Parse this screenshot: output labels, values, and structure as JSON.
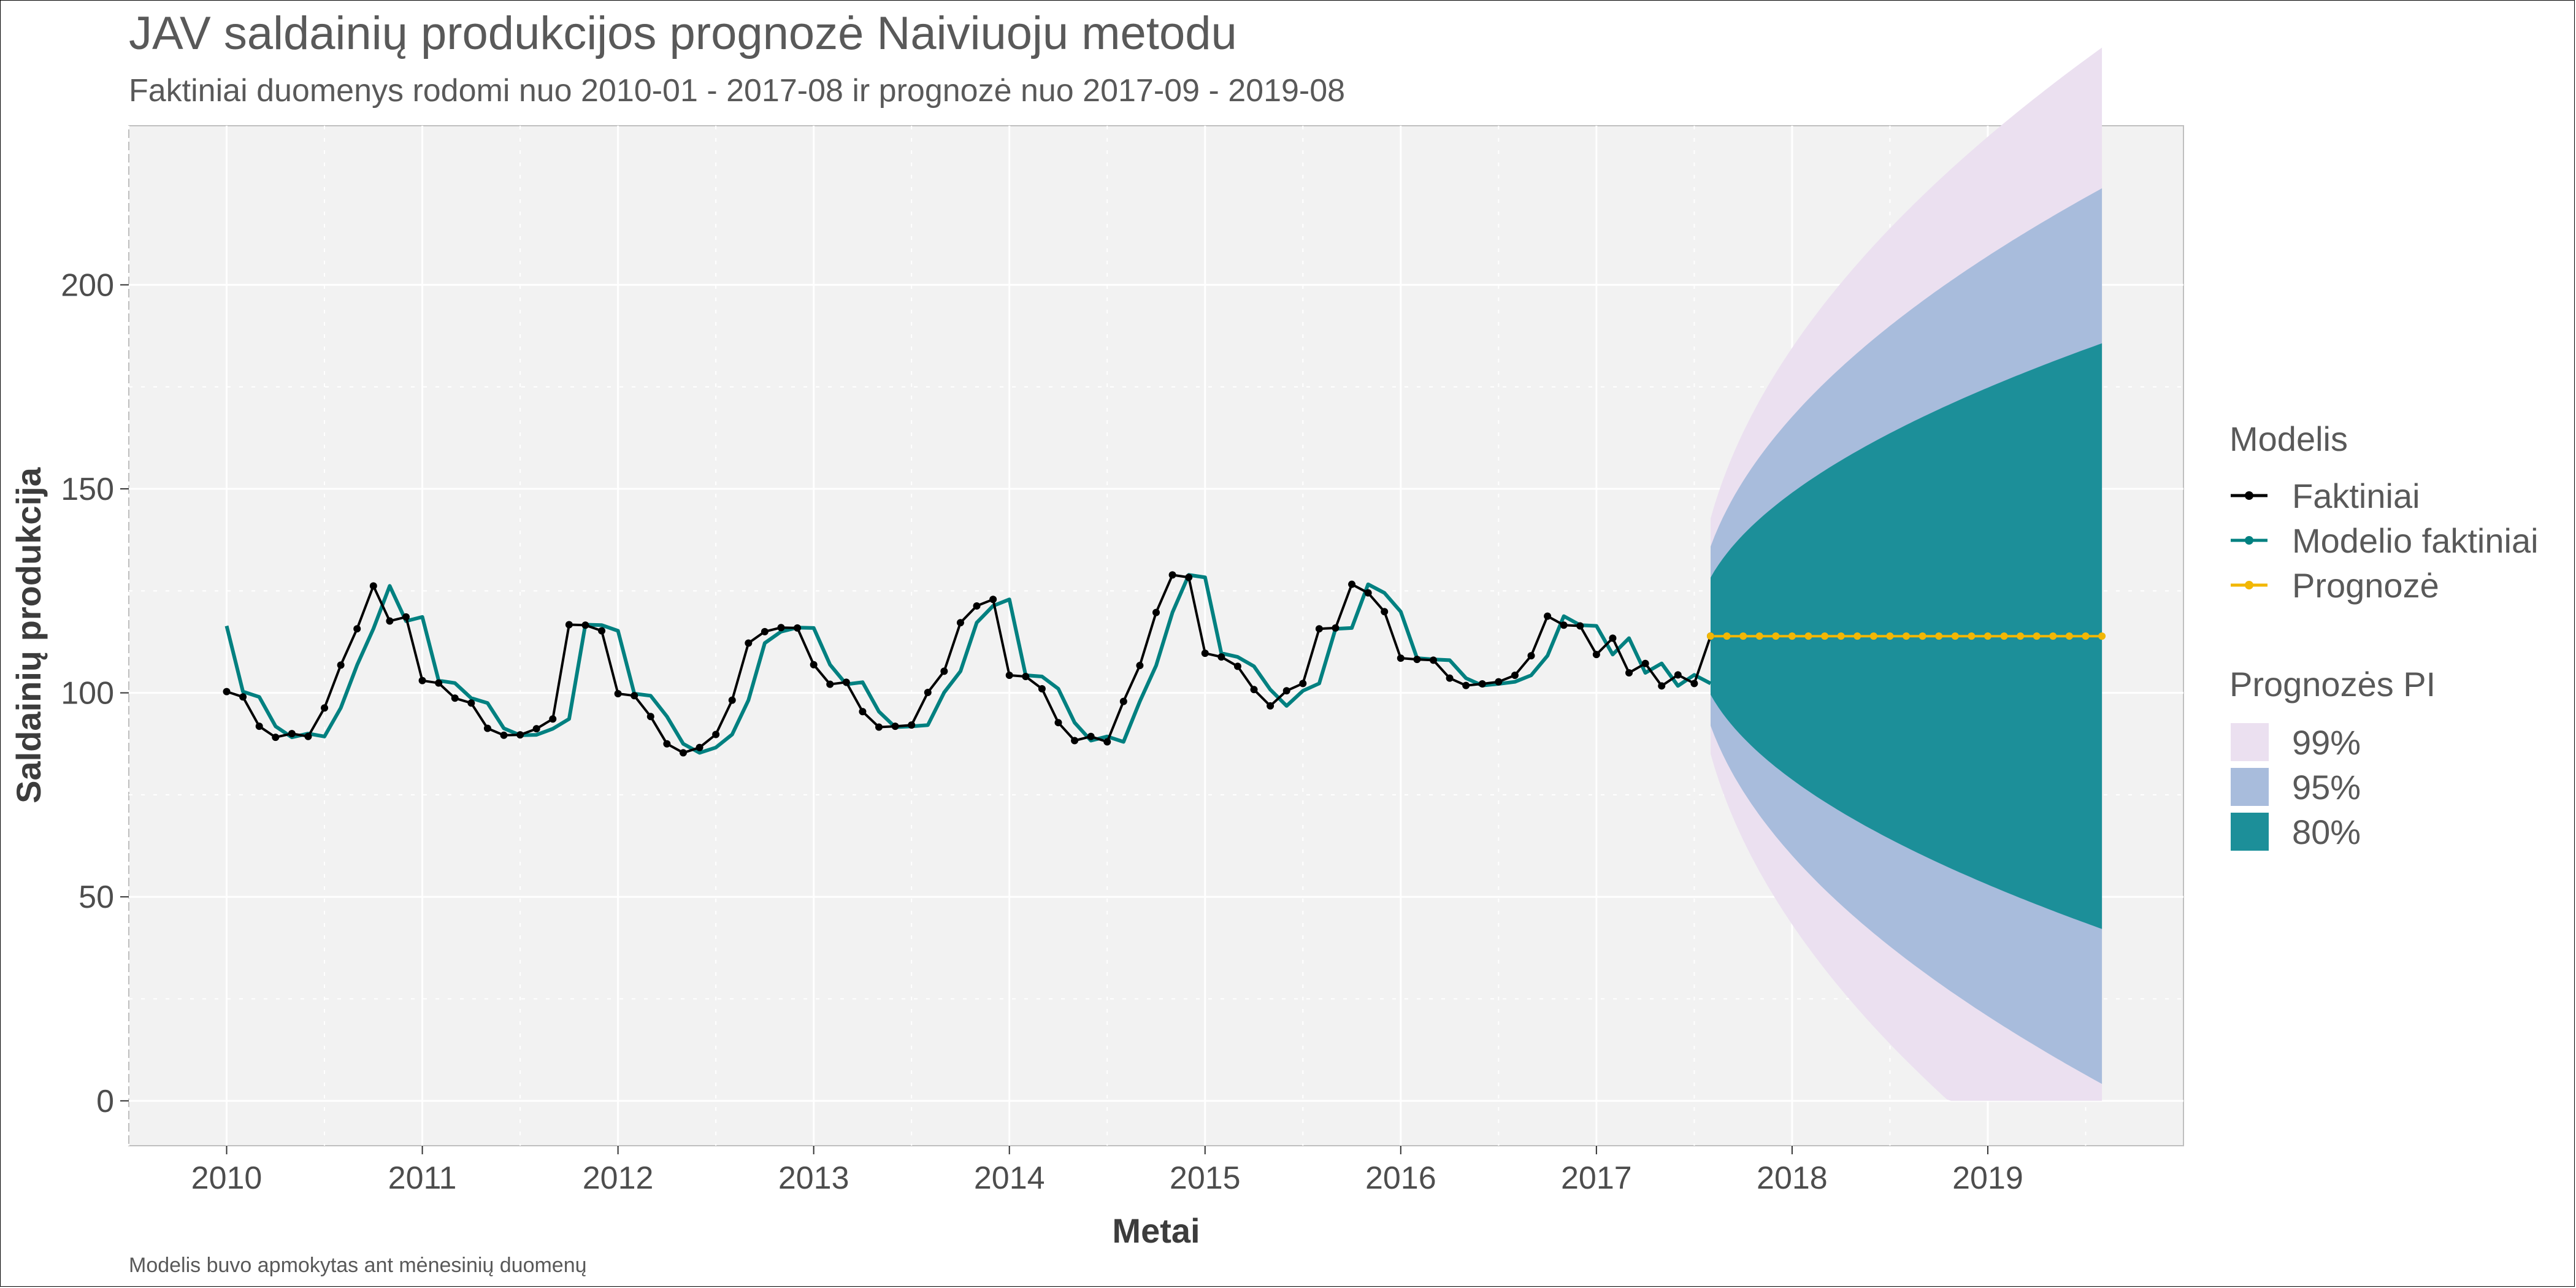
{
  "chart_data": {
    "type": "line",
    "title": "JAV saldainių produkcijos prognozė Naiviuoju metodu",
    "subtitle": "Faktiniai duomenys rodomi nuo 2010-01 - 2017-08 ir prognozė nuo 2017-09 - 2019-08",
    "caption": "Modelis buvo apmokytas ant mėnesinių duomenų",
    "xlabel": "Metai",
    "ylabel": "Saldainių produkcija",
    "xlim": [
      2009.5,
      2020.0
    ],
    "ylim": [
      -11,
      239
    ],
    "x_ticks": [
      "2010",
      "2011",
      "2012",
      "2013",
      "2014",
      "2015",
      "2016",
      "2017",
      "2018",
      "2019"
    ],
    "y_ticks": [
      "0",
      "50",
      "100",
      "150",
      "200"
    ],
    "grid": true,
    "colors": {
      "actual": "#000000",
      "fitted": "#008080",
      "forecast": "#f2b705",
      "pi99": "#ebe0f0",
      "pi95": "#a8bcdc",
      "pi80": "#1c8f99",
      "panel": "#f2f2f2"
    },
    "legend": {
      "placement": "right",
      "model_title": "Modelis",
      "model_items": [
        "Faktiniai",
        "Modelio faktiniai",
        "Prognozė"
      ],
      "pi_title": "Prognozės PI",
      "pi_items": [
        "99%",
        "95%",
        "80%"
      ]
    },
    "series": [
      {
        "name": "Faktiniai",
        "x_start": "2010-01",
        "frequency": "monthly",
        "values": [
          100.3,
          99.0,
          91.8,
          89.1,
          90.0,
          89.3,
          96.3,
          106.8,
          115.7,
          126.2,
          117.6,
          118.6,
          103.0,
          102.4,
          98.7,
          97.5,
          91.3,
          89.6,
          89.7,
          91.2,
          93.6,
          116.7,
          116.6,
          115.2,
          99.8,
          99.3,
          94.2,
          87.5,
          85.3,
          86.6,
          89.8,
          98.2,
          112.2,
          115.0,
          116.0,
          115.9,
          106.9,
          102.1,
          102.6,
          95.4,
          91.6,
          91.8,
          92.1,
          100.1,
          105.3,
          117.2,
          121.3,
          122.9,
          104.3,
          104.0,
          101.0,
          92.7,
          88.3,
          89.3,
          88.0,
          97.9,
          106.7,
          119.7,
          128.9,
          128.3,
          109.7,
          108.8,
          106.5,
          100.8,
          96.8,
          100.5,
          102.3,
          115.7,
          115.9,
          126.6,
          124.5,
          119.9,
          108.5,
          108.2,
          108.0,
          103.6,
          101.8,
          102.2,
          102.7,
          104.3,
          109.1,
          118.8,
          116.6,
          116.4,
          109.4,
          113.4,
          104.9,
          107.2,
          101.7,
          104.4,
          102.3,
          113.9
        ]
      },
      {
        "name": "Modelio faktiniai",
        "x_start": "2010-01",
        "frequency": "monthly",
        "values": [
          116.4,
          100.3,
          99.0,
          91.8,
          89.1,
          90.0,
          89.3,
          96.3,
          106.8,
          115.7,
          126.2,
          117.6,
          118.6,
          103.0,
          102.4,
          98.7,
          97.5,
          91.3,
          89.6,
          89.7,
          91.2,
          93.6,
          116.7,
          116.6,
          115.2,
          99.8,
          99.3,
          94.2,
          87.5,
          85.3,
          86.6,
          89.8,
          98.2,
          112.2,
          115.0,
          116.0,
          115.9,
          106.9,
          102.1,
          102.6,
          95.4,
          91.6,
          91.8,
          92.1,
          100.1,
          105.3,
          117.2,
          121.3,
          122.9,
          104.3,
          104.0,
          101.0,
          92.7,
          88.3,
          89.3,
          88.0,
          97.9,
          106.7,
          119.7,
          128.9,
          128.3,
          109.7,
          108.8,
          106.5,
          100.8,
          96.8,
          100.5,
          102.3,
          115.7,
          115.9,
          126.6,
          124.5,
          119.9,
          108.5,
          108.2,
          108.0,
          103.6,
          101.8,
          102.2,
          102.7,
          104.3,
          109.1,
          118.8,
          116.6,
          116.4,
          109.4,
          113.4,
          104.9,
          107.2,
          101.7,
          104.4,
          102.3
        ]
      },
      {
        "name": "Prognozė",
        "x_start": "2017-08",
        "frequency": "monthly",
        "values": [
          113.9,
          113.9,
          113.9,
          113.9,
          113.9,
          113.9,
          113.9,
          113.9,
          113.9,
          113.9,
          113.9,
          113.9,
          113.9,
          113.9,
          113.9,
          113.9,
          113.9,
          113.9,
          113.9,
          113.9,
          113.9,
          113.9,
          113.9,
          113.9,
          113.9
        ]
      }
    ],
    "prediction_intervals": {
      "center": 113.9,
      "x_start": "2017-08",
      "x_end": "2019-08",
      "sigma": 11.2,
      "levels": [
        {
          "name": "99%",
          "z": 2.576
        },
        {
          "name": "95%",
          "z": 1.96
        },
        {
          "name": "80%",
          "z": 1.2816
        }
      ]
    }
  }
}
